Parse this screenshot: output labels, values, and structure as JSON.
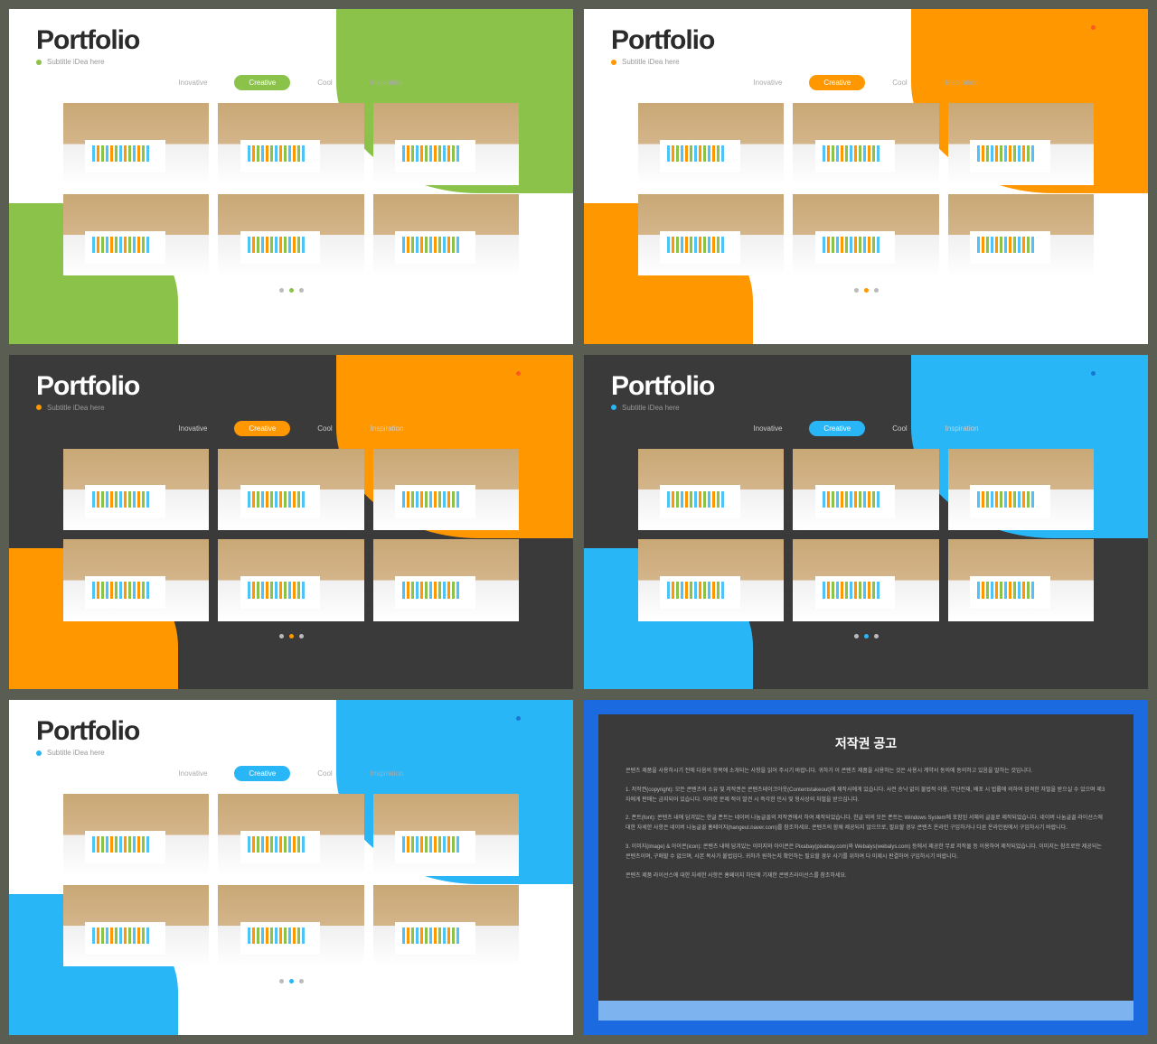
{
  "common": {
    "title": "Portfolio",
    "subtitle": "Subtitle iDea here",
    "logo_text": "iDea",
    "tabs": [
      "Inovative",
      "Creative",
      "Cool",
      "Inspiration"
    ],
    "active_tab_index": 1,
    "pager_count": 3,
    "pager_active": 1,
    "thumb_count": 6
  },
  "slides": [
    {
      "bg": "light",
      "accent": "#8bc34a",
      "logo_dot": "#8bc34a",
      "logo_text_color": "#8bc34a",
      "title_color": "#2b2b2b",
      "tab_inactive": "#aaa"
    },
    {
      "bg": "light",
      "accent": "#ff9800",
      "logo_dot": "#ff5722",
      "logo_text_color": "#ff9800",
      "title_color": "#2b2b2b",
      "tab_inactive": "#aaa"
    },
    {
      "bg": "dark",
      "accent": "#ff9800",
      "logo_dot": "#ff5722",
      "logo_text_color": "#ff9800",
      "title_color": "#ffffff",
      "tab_inactive": "#ccc"
    },
    {
      "bg": "dark",
      "accent": "#29b6f6",
      "logo_dot": "#1976d2",
      "logo_text_color": "#29b6f6",
      "title_color": "#ffffff",
      "tab_inactive": "#ccc"
    },
    {
      "bg": "light",
      "accent": "#29b6f6",
      "logo_dot": "#1976d2",
      "logo_text_color": "#29b6f6",
      "title_color": "#2b2b2b",
      "tab_inactive": "#aaa"
    }
  ],
  "notice": {
    "outer_bg": "#1b6ae0",
    "footer_bg": "#7db4f0",
    "inner_bg": "#3a3a3a",
    "title": "저작권 공고",
    "paragraphs": [
      "콘텐츠 제품을 사용하시기 전에 다음의 항목에 소개되는 사항을 읽어 주시기 바랍니다. 귀하가 이 콘텐츠 제품을 사용하는 것은 사용시 계약서 동의에 동의하고 있음을 말하는 것입니다.",
      "1. 저작권(copyright): 모든 콘텐츠의 소유 및 저작권은 콘텐츠테이크아웃(Contentstakeout)에 제작사에게 있습니다. 사전 승낙 없이 불법적 이용, 무단전재, 배포 시 법률에 의하여 엄격한 처벌을 받으실 수 있으며 제3자에게 판매는 금지되어 있습니다. 이러한 문제 적이 발견 시 즉각한 민사 및 형사상의 처벌을 받으십니다.",
      "2. 폰트(font): 콘텐츠 내에 담겨있는 한글 폰트는 네이버 나눔글꼴의 저작권에서 하여 제작되었습니다. 한글 외의 모든 폰트는 Windows System에 포함된 서체의 글꼴로 제작되었습니다. 네이버 나눔글꼴 라이선스에 대한 자세한 사항은 네이버 나눔글꼴 홈페이지(hangeul.naver.com)를 참조하세요. 콘텐츠의 함께 제공되지 않으므로, 필요할 경우 콘텐츠 온라인 구입하거나 다른 온라인원에서 구입하시기 바랍니다.",
      "3. 이미지(image) & 아이콘(icon): 콘텐츠 내에 담겨있는 이미지와 아이콘은 Pixabay(pixabay.com)와 Webalys(webalys.com) 등에서 제공한 무료 저작물 등 이용하여 제작되었습니다. 이미지는 참조로만 제공되는 콘텐츠이며, 구매할 수 없으며, 사본 복사가 불법입다. 귀하가 원하는지 확인하는 필요할 경우 사기를 위하여 다 미제시 판결하여 구입하시기 바랍니다.",
      "콘텐츠 제품 라이선스에 대한 자세한 사항은 홈페이지 하단에 기재한 콘텐츠라이선스를 참조하세요."
    ]
  }
}
